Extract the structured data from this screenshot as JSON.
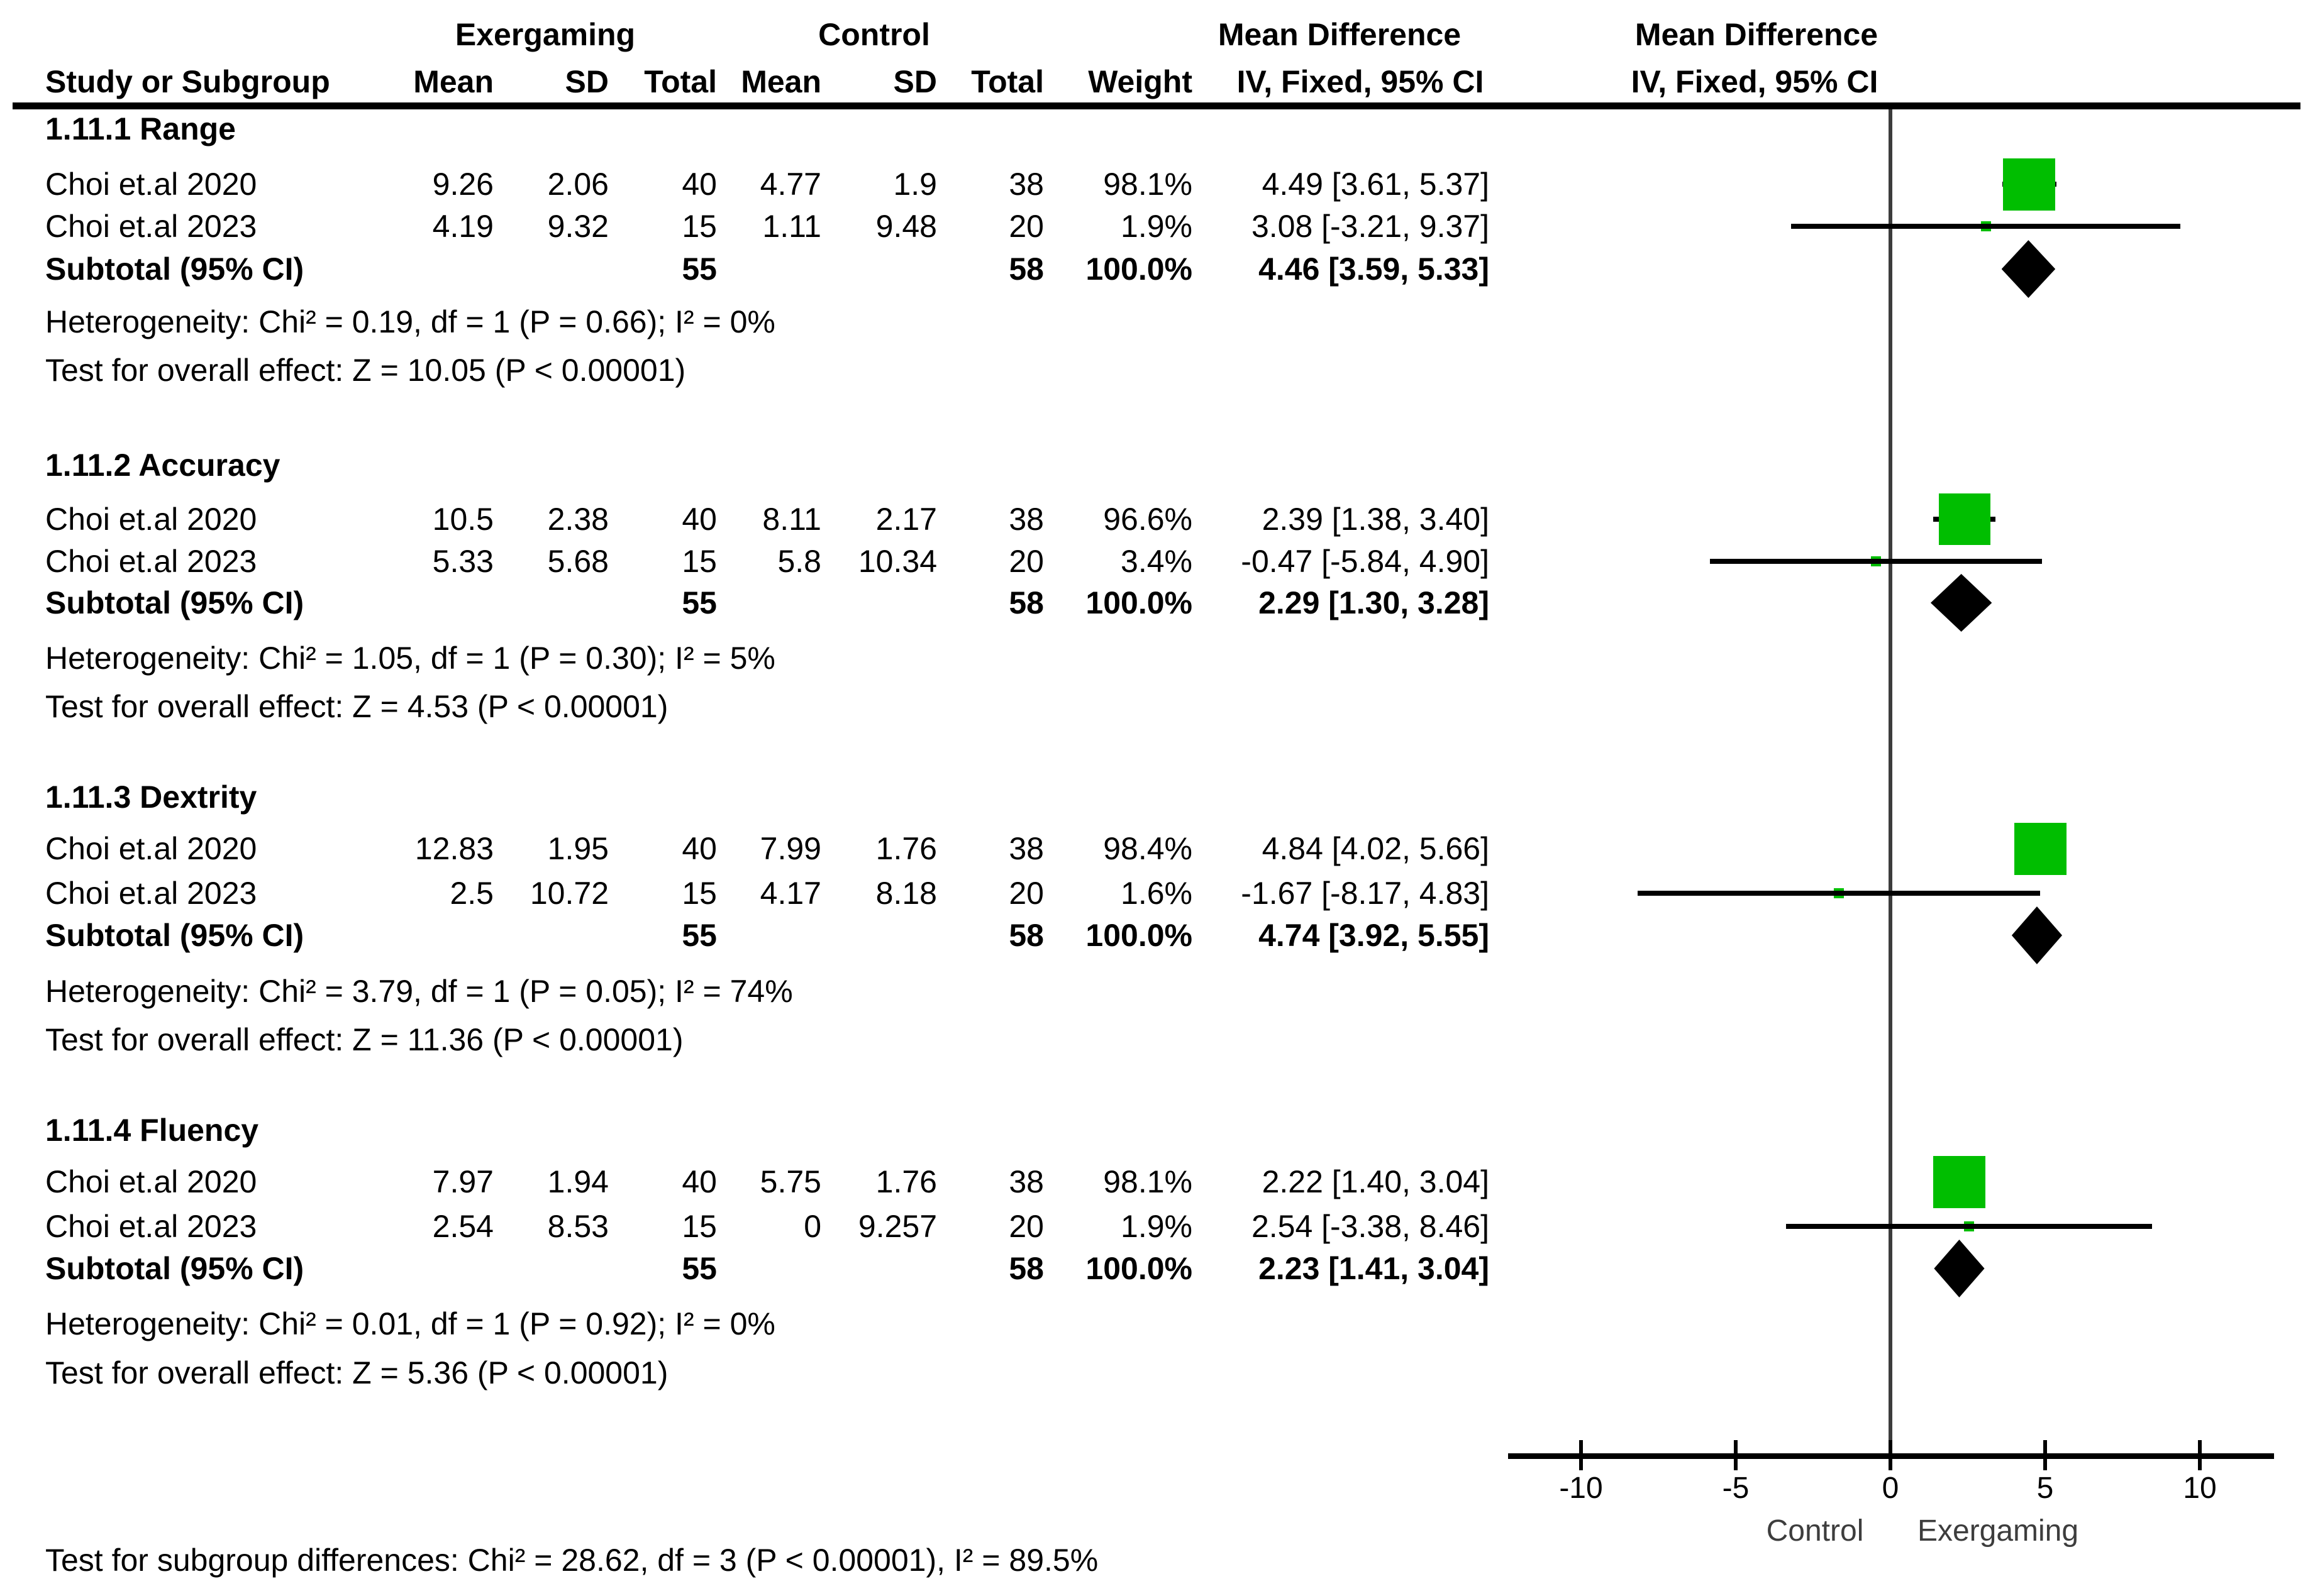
{
  "title_row": {
    "exergaming": "Exergaming",
    "control": "Control",
    "mean_difference_left": "Mean Difference",
    "mean_difference_right": "Mean Difference"
  },
  "header_row": {
    "study": "Study or Subgroup",
    "mean1": "Mean",
    "sd1": "SD",
    "total1": "Total",
    "mean2": "Mean",
    "sd2": "SD",
    "total2": "Total",
    "weight": "Weight",
    "iv_left": "IV, Fixed, 95% CI",
    "iv_right": "IV, Fixed, 95% CI"
  },
  "subgroups": [
    {
      "title": "1.11.1 Range",
      "studies": [
        {
          "name": "Choi et.al 2020",
          "mean1": "9.26",
          "sd1": "2.06",
          "total1": "40",
          "mean2": "4.77",
          "sd2": "1.9",
          "total2": "38",
          "weight": "98.1%",
          "ci_text": "4.49 [3.61, 5.37]",
          "md": 4.49,
          "lo": 3.61,
          "hi": 5.37,
          "weight_val": 98.1
        },
        {
          "name": "Choi et.al 2023",
          "mean1": "4.19",
          "sd1": "9.32",
          "total1": "15",
          "mean2": "1.11",
          "sd2": "9.48",
          "total2": "20",
          "weight": "1.9%",
          "ci_text": "3.08 [-3.21, 9.37]",
          "md": 3.08,
          "lo": -3.21,
          "hi": 9.37,
          "weight_val": 1.9
        }
      ],
      "subtotal": {
        "label": "Subtotal (95% CI)",
        "total1": "55",
        "total2": "58",
        "weight": "100.0%",
        "ci_text": "4.46 [3.59, 5.33]",
        "md": 4.46,
        "lo": 3.59,
        "hi": 5.33
      },
      "heterogeneity": "Heterogeneity: Chi² = 0.19, df = 1 (P = 0.66); I² = 0%",
      "overall_effect": "Test for overall effect: Z = 10.05 (P < 0.00001)"
    },
    {
      "title": "1.11.2 Accuracy",
      "studies": [
        {
          "name": "Choi et.al 2020",
          "mean1": "10.5",
          "sd1": "2.38",
          "total1": "40",
          "mean2": "8.11",
          "sd2": "2.17",
          "total2": "38",
          "weight": "96.6%",
          "ci_text": "2.39 [1.38, 3.40]",
          "md": 2.39,
          "lo": 1.38,
          "hi": 3.4,
          "weight_val": 96.6
        },
        {
          "name": "Choi et.al 2023",
          "mean1": "5.33",
          "sd1": "5.68",
          "total1": "15",
          "mean2": "5.8",
          "sd2": "10.34",
          "total2": "20",
          "weight": "3.4%",
          "ci_text": "-0.47 [-5.84, 4.90]",
          "md": -0.47,
          "lo": -5.84,
          "hi": 4.9,
          "weight_val": 3.4
        }
      ],
      "subtotal": {
        "label": "Subtotal (95% CI)",
        "total1": "55",
        "total2": "58",
        "weight": "100.0%",
        "ci_text": "2.29 [1.30, 3.28]",
        "md": 2.29,
        "lo": 1.3,
        "hi": 3.28
      },
      "heterogeneity": "Heterogeneity: Chi² = 1.05, df = 1 (P = 0.30); I² = 5%",
      "overall_effect": "Test for overall effect: Z = 4.53 (P < 0.00001)"
    },
    {
      "title": "1.11.3 Dextrity",
      "studies": [
        {
          "name": "Choi et.al 2020",
          "mean1": "12.83",
          "sd1": "1.95",
          "total1": "40",
          "mean2": "7.99",
          "sd2": "1.76",
          "total2": "38",
          "weight": "98.4%",
          "ci_text": "4.84 [4.02, 5.66]",
          "md": 4.84,
          "lo": 4.02,
          "hi": 5.66,
          "weight_val": 98.4
        },
        {
          "name": "Choi et.al 2023",
          "mean1": "2.5",
          "sd1": "10.72",
          "total1": "15",
          "mean2": "4.17",
          "sd2": "8.18",
          "total2": "20",
          "weight": "1.6%",
          "ci_text": "-1.67 [-8.17, 4.83]",
          "md": -1.67,
          "lo": -8.17,
          "hi": 4.83,
          "weight_val": 1.6
        }
      ],
      "subtotal": {
        "label": "Subtotal (95% CI)",
        "total1": "55",
        "total2": "58",
        "weight": "100.0%",
        "ci_text": "4.74 [3.92, 5.55]",
        "md": 4.74,
        "lo": 3.92,
        "hi": 5.55
      },
      "heterogeneity": "Heterogeneity: Chi² = 3.79, df = 1 (P = 0.05); I² = 74%",
      "overall_effect": "Test for overall effect: Z = 11.36 (P < 0.00001)"
    },
    {
      "title": "1.11.4 Fluency",
      "studies": [
        {
          "name": "Choi et.al 2020",
          "mean1": "7.97",
          "sd1": "1.94",
          "total1": "40",
          "mean2": "5.75",
          "sd2": "1.76",
          "total2": "38",
          "weight": "98.1%",
          "ci_text": "2.22 [1.40, 3.04]",
          "md": 2.22,
          "lo": 1.4,
          "hi": 3.04,
          "weight_val": 98.1
        },
        {
          "name": "Choi et.al 2023",
          "mean1": "2.54",
          "sd1": "8.53",
          "total1": "15",
          "mean2": "0",
          "sd2": "9.257",
          "total2": "20",
          "weight": "1.9%",
          "ci_text": "2.54 [-3.38, 8.46]",
          "md": 2.54,
          "lo": -3.38,
          "hi": 8.46,
          "weight_val": 1.9
        }
      ],
      "subtotal": {
        "label": "Subtotal (95% CI)",
        "total1": "55",
        "total2": "58",
        "weight": "100.0%",
        "ci_text": "2.23 [1.41, 3.04]",
        "md": 2.23,
        "lo": 1.41,
        "hi": 3.04
      },
      "heterogeneity": "Heterogeneity: Chi² = 0.01, df = 1 (P = 0.92); I² = 0%",
      "overall_effect": "Test for overall effect: Z = 5.36 (P < 0.00001)"
    }
  ],
  "footer": "Test for subgroup differences: Chi² = 28.62, df = 3 (P < 0.00001), I² = 89.5%",
  "axis": {
    "ticks": [
      -10,
      -5,
      0,
      5,
      10
    ],
    "tick_labels": [
      "-10",
      "-5",
      "0",
      "5",
      "10"
    ],
    "label_left": "Control",
    "label_right": "Exergaming",
    "range": [
      -12.4,
      12.4
    ]
  },
  "colors": {
    "square_green": "#00be00",
    "diamond_black": "#000000",
    "ci_line_black": "#000000",
    "zero_line_gray": "#3c3c3c",
    "axis_label_gray": "#3d3d3d"
  },
  "chart_data": {
    "type": "scatter",
    "variant": "forest_plot_mean_difference_fixed_effect",
    "title": "Mean Difference, IV, Fixed, 95% CI",
    "xlabel_left": "Control",
    "xlabel_right": "Exergaming",
    "x_ticks": [
      -10,
      -5,
      0,
      5,
      10
    ],
    "x_range": [
      -12.4,
      12.4
    ],
    "grid": false,
    "subgroups": [
      {
        "name": "1.11.1 Range",
        "points": [
          {
            "study": "Choi et.al 2020",
            "md": 4.49,
            "ci": [
              3.61,
              5.37
            ],
            "weight_pct": 98.1
          },
          {
            "study": "Choi et.al 2023",
            "md": 3.08,
            "ci": [
              -3.21,
              9.37
            ],
            "weight_pct": 1.9
          }
        ],
        "subtotal": {
          "md": 4.46,
          "ci": [
            3.59,
            5.33
          ],
          "weight_pct": 100.0
        },
        "heterogeneity": {
          "chi2": 0.19,
          "df": 1,
          "p": 0.66,
          "i2_pct": 0
        },
        "overall_effect": {
          "z": 10.05,
          "p": "< 0.00001"
        }
      },
      {
        "name": "1.11.2 Accuracy",
        "points": [
          {
            "study": "Choi et.al 2020",
            "md": 2.39,
            "ci": [
              1.38,
              3.4
            ],
            "weight_pct": 96.6
          },
          {
            "study": "Choi et.al 2023",
            "md": -0.47,
            "ci": [
              -5.84,
              4.9
            ],
            "weight_pct": 3.4
          }
        ],
        "subtotal": {
          "md": 2.29,
          "ci": [
            1.3,
            3.28
          ],
          "weight_pct": 100.0
        },
        "heterogeneity": {
          "chi2": 1.05,
          "df": 1,
          "p": 0.3,
          "i2_pct": 5
        },
        "overall_effect": {
          "z": 4.53,
          "p": "< 0.00001"
        }
      },
      {
        "name": "1.11.3 Dextrity",
        "points": [
          {
            "study": "Choi et.al 2020",
            "md": 4.84,
            "ci": [
              4.02,
              5.66
            ],
            "weight_pct": 98.4
          },
          {
            "study": "Choi et.al 2023",
            "md": -1.67,
            "ci": [
              -8.17,
              4.83
            ],
            "weight_pct": 1.6
          }
        ],
        "subtotal": {
          "md": 4.74,
          "ci": [
            3.92,
            5.55
          ],
          "weight_pct": 100.0
        },
        "heterogeneity": {
          "chi2": 3.79,
          "df": 1,
          "p": 0.05,
          "i2_pct": 74
        },
        "overall_effect": {
          "z": 11.36,
          "p": "< 0.00001"
        }
      },
      {
        "name": "1.11.4 Fluency",
        "points": [
          {
            "study": "Choi et.al 2020",
            "md": 2.22,
            "ci": [
              1.4,
              3.04
            ],
            "weight_pct": 98.1
          },
          {
            "study": "Choi et.al 2023",
            "md": 2.54,
            "ci": [
              -3.38,
              8.46
            ],
            "weight_pct": 1.9
          }
        ],
        "subtotal": {
          "md": 2.23,
          "ci": [
            1.41,
            3.04
          ],
          "weight_pct": 100.0
        },
        "heterogeneity": {
          "chi2": 0.01,
          "df": 1,
          "p": 0.92,
          "i2_pct": 0
        },
        "overall_effect": {
          "z": 5.36,
          "p": "< 0.00001"
        }
      }
    ],
    "subgroup_difference_test": {
      "chi2": 28.62,
      "df": 3,
      "p": "< 0.00001",
      "i2_pct": 89.5
    }
  }
}
